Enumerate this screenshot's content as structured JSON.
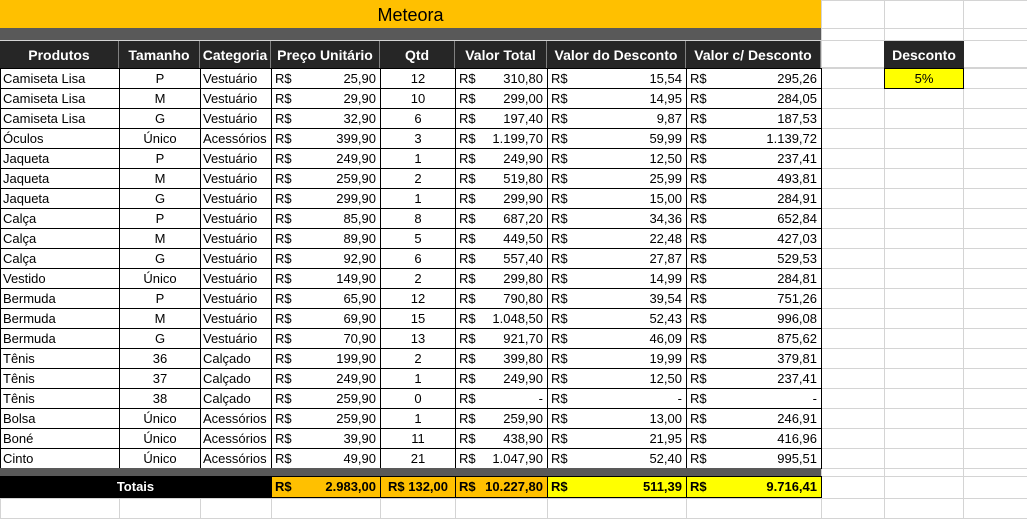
{
  "title": "Meteora",
  "currency": "R$",
  "table": {
    "headers": [
      "Produtos",
      "Tamanho",
      "Categoria",
      "Preço Unitário",
      "Qtd",
      "Valor Total",
      "Valor do Desconto",
      "Valor c/ Desconto"
    ],
    "rows": [
      [
        "Camiseta Lisa",
        "P",
        "Vestuário",
        "25,90",
        "12",
        "310,80",
        "15,54",
        "295,26"
      ],
      [
        "Camiseta Lisa",
        "M",
        "Vestuário",
        "29,90",
        "10",
        "299,00",
        "14,95",
        "284,05"
      ],
      [
        "Camiseta Lisa",
        "G",
        "Vestuário",
        "32,90",
        "6",
        "197,40",
        "9,87",
        "187,53"
      ],
      [
        "Óculos",
        "Único",
        "Acessórios",
        "399,90",
        "3",
        "1.199,70",
        "59,99",
        "1.139,72"
      ],
      [
        "Jaqueta",
        "P",
        "Vestuário",
        "249,90",
        "1",
        "249,90",
        "12,50",
        "237,41"
      ],
      [
        "Jaqueta",
        "M",
        "Vestuário",
        "259,90",
        "2",
        "519,80",
        "25,99",
        "493,81"
      ],
      [
        "Jaqueta",
        "G",
        "Vestuário",
        "299,90",
        "1",
        "299,90",
        "15,00",
        "284,91"
      ],
      [
        "Calça",
        "P",
        "Vestuário",
        "85,90",
        "8",
        "687,20",
        "34,36",
        "652,84"
      ],
      [
        "Calça",
        "M",
        "Vestuário",
        "89,90",
        "5",
        "449,50",
        "22,48",
        "427,03"
      ],
      [
        "Calça",
        "G",
        "Vestuário",
        "92,90",
        "6",
        "557,40",
        "27,87",
        "529,53"
      ],
      [
        "Vestido",
        "Único",
        "Vestuário",
        "149,90",
        "2",
        "299,80",
        "14,99",
        "284,81"
      ],
      [
        "Bermuda",
        "P",
        "Vestuário",
        "65,90",
        "12",
        "790,80",
        "39,54",
        "751,26"
      ],
      [
        "Bermuda",
        "M",
        "Vestuário",
        "69,90",
        "15",
        "1.048,50",
        "52,43",
        "996,08"
      ],
      [
        "Bermuda",
        "G",
        "Vestuário",
        "70,90",
        "13",
        "921,70",
        "46,09",
        "875,62"
      ],
      [
        "Tênis",
        "36",
        "Calçado",
        "199,90",
        "2",
        "399,80",
        "19,99",
        "379,81"
      ],
      [
        "Tênis",
        "37",
        "Calçado",
        "249,90",
        "1",
        "249,90",
        "12,50",
        "237,41"
      ],
      [
        "Tênis",
        "38",
        "Calçado",
        "259,90",
        "0",
        "-",
        "-",
        "-"
      ],
      [
        "Bolsa",
        "Único",
        "Acessórios",
        "259,90",
        "1",
        "259,90",
        "13,00",
        "246,91"
      ],
      [
        "Boné",
        "Único",
        "Acessórios",
        "39,90",
        "11",
        "438,90",
        "21,95",
        "416,96"
      ],
      [
        "Cinto",
        "Único",
        "Acessórios",
        "49,90",
        "21",
        "1.047,90",
        "52,40",
        "995,51"
      ]
    ],
    "totals": {
      "label": "Totais",
      "price": "2.983,00",
      "qty": "R$ 132,00",
      "total": "10.227,80",
      "discount": "511,39",
      "net": "9.716,41"
    }
  },
  "discount": {
    "label": "Desconto",
    "value": "5%"
  }
}
